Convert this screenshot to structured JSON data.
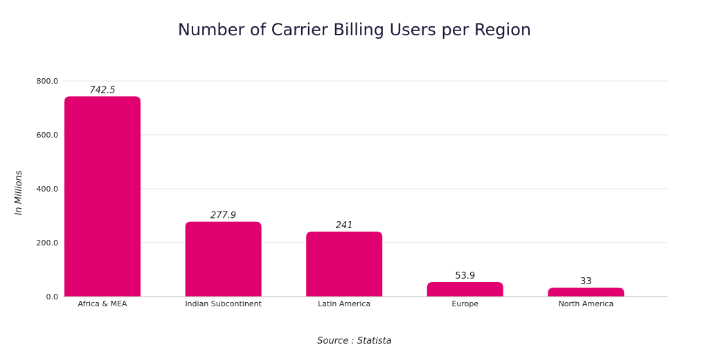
{
  "chart_data": {
    "type": "bar",
    "title": "Number of Carrier Billing Users per Region",
    "ylabel": "In Millions",
    "xlabel": "",
    "source": "Source : Statista",
    "categories": [
      "Africa & MEA",
      "Indian Subcontinent",
      "Latin America",
      "Europe",
      "North America"
    ],
    "values": [
      742.5,
      277.9,
      241,
      53.9,
      33
    ],
    "value_labels": [
      "742.5",
      "277.9",
      "241",
      "53.9",
      "33"
    ],
    "value_label_italic": [
      true,
      true,
      true,
      false,
      false
    ],
    "ylim": [
      0,
      800
    ],
    "yticks": [
      0,
      200,
      400,
      600,
      800
    ],
    "ytick_labels": [
      "0.0",
      "200.0",
      "400.0",
      "600.0",
      "800.0"
    ],
    "bar_color": "#e0006f",
    "grid": true
  }
}
